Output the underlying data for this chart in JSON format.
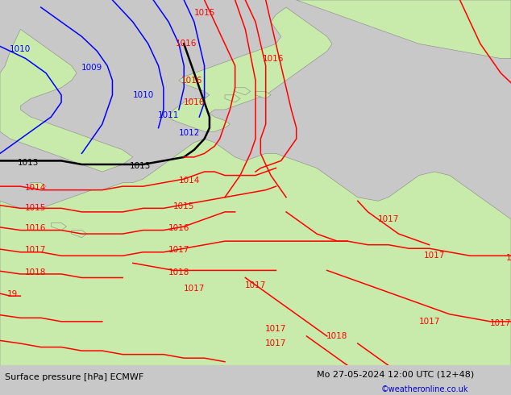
{
  "title_left": "Surface pressure [hPa] ECMWF",
  "title_right": "Mo 27-05-2024 12:00 UTC (12+48)",
  "credit": "©weatheronline.co.uk",
  "credit_color": "#0000cc",
  "sea_color": "#d8d8d8",
  "land_color": "#c8eaaa",
  "coast_color": "#888888",
  "bottom_bar_color": "#c8c8c8",
  "bottom_text_color": "#000000",
  "figsize": [
    6.34,
    4.9
  ],
  "dpi": 100,
  "blue_color": "#0000ff",
  "black_color": "#000000",
  "red_color": "#ff0000",
  "lw_thin": 1.1,
  "lw_thick": 1.8,
  "label_fontsize": 7.5
}
